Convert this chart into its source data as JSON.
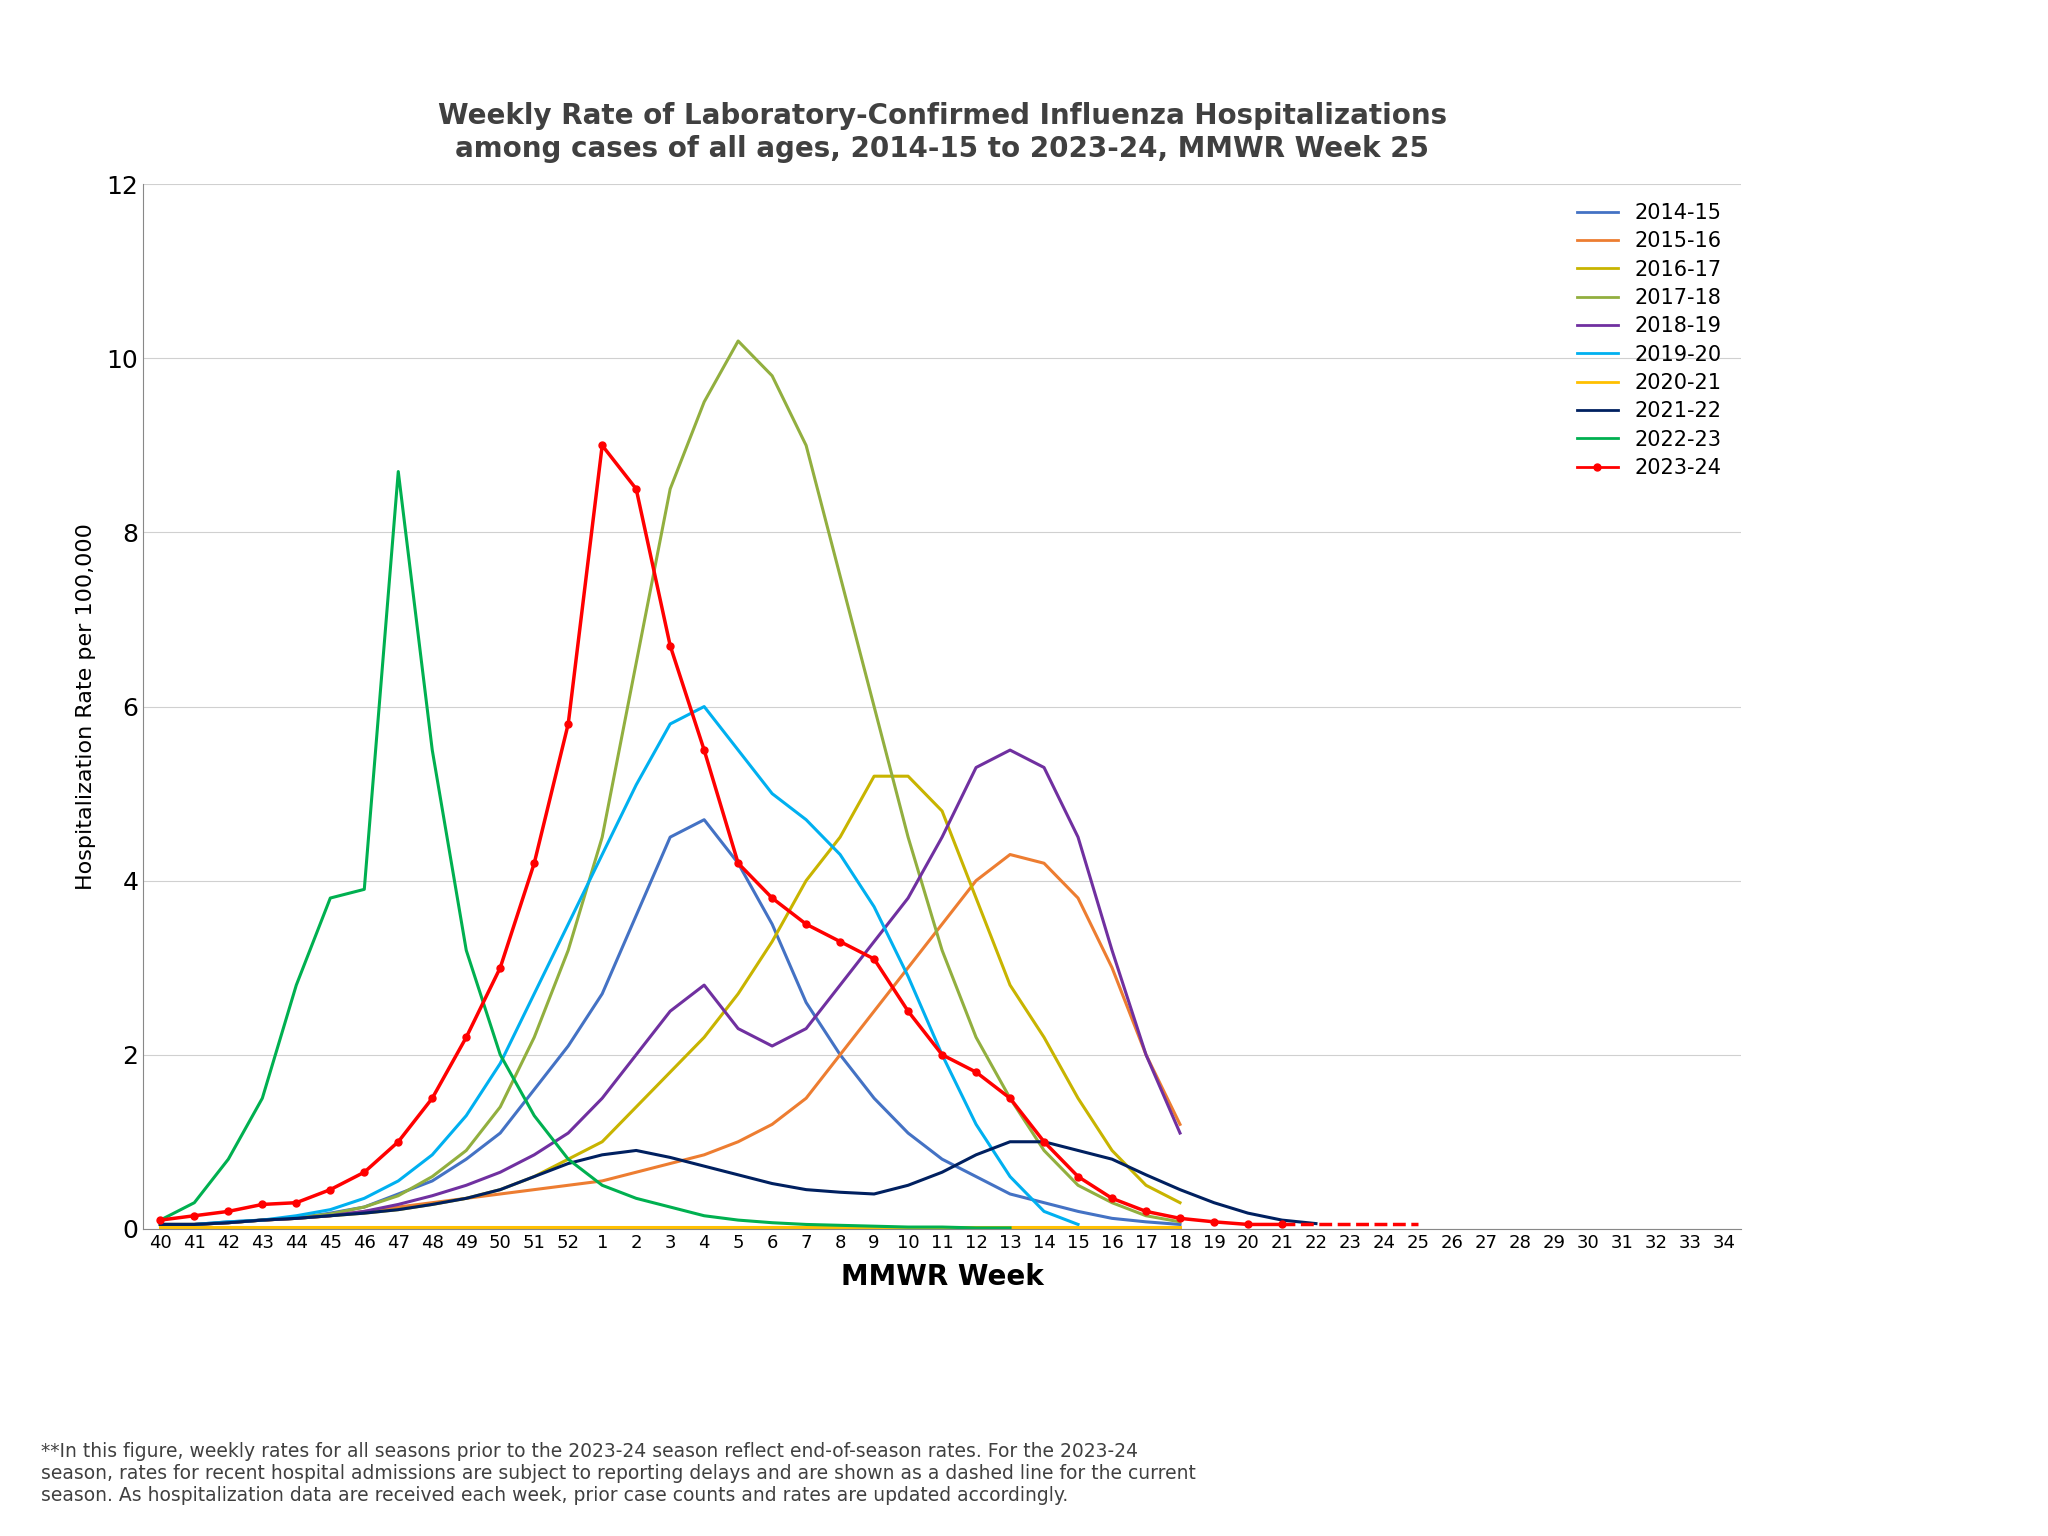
{
  "title_line1": "Weekly Rate of Laboratory-Confirmed Influenza Hospitalizations",
  "title_line2": "among cases of all ages, 2014-15 to 2023-24, MMWR Week 25",
  "xlabel": "MMWR Week",
  "ylabel": "Hospitalization Rate per 100,000",
  "ylim": [
    0,
    12
  ],
  "yticks": [
    0,
    2,
    4,
    6,
    8,
    10,
    12
  ],
  "x_labels": [
    "40",
    "41",
    "42",
    "43",
    "44",
    "45",
    "46",
    "47",
    "48",
    "49",
    "50",
    "51",
    "52",
    "1",
    "2",
    "3",
    "4",
    "5",
    "6",
    "7",
    "8",
    "9",
    "10",
    "11",
    "12",
    "13",
    "14",
    "15",
    "16",
    "17",
    "18",
    "19",
    "20",
    "21",
    "22",
    "23",
    "24",
    "25",
    "26",
    "27",
    "28",
    "29",
    "30",
    "31",
    "32",
    "33",
    "34"
  ],
  "footnote": "**In this figure, weekly rates for all seasons prior to the 2023-24 season reflect end-of-season rates. For the 2023-24\nseason, rates for recent hospital admissions are subject to reporting delays and are shown as a dashed line for the current\nseason. As hospitalization data are received each week, prior case counts and rates are updated accordingly.",
  "seasons": {
    "2014-15": {
      "color": "#4472C4",
      "xi": [
        0,
        1,
        2,
        3,
        4,
        5,
        6,
        7,
        8,
        9,
        10,
        11,
        12,
        13,
        14,
        15,
        16,
        17,
        18,
        19,
        20,
        21,
        22,
        23,
        24,
        25,
        26,
        27,
        28,
        29,
        30
      ],
      "y": [
        0.05,
        0.05,
        0.08,
        0.1,
        0.12,
        0.18,
        0.25,
        0.4,
        0.55,
        0.8,
        1.1,
        1.6,
        2.1,
        2.7,
        3.6,
        4.5,
        4.7,
        4.2,
        3.5,
        2.6,
        2.0,
        1.5,
        1.1,
        0.8,
        0.6,
        0.4,
        0.3,
        0.2,
        0.12,
        0.08,
        0.05
      ]
    },
    "2015-16": {
      "color": "#ED7D31",
      "xi": [
        0,
        1,
        2,
        3,
        4,
        5,
        6,
        7,
        8,
        9,
        10,
        11,
        12,
        13,
        14,
        15,
        16,
        17,
        18,
        19,
        20,
        21,
        22,
        23,
        24,
        25,
        26,
        27,
        28,
        29,
        30
      ],
      "y": [
        0.05,
        0.05,
        0.07,
        0.1,
        0.12,
        0.15,
        0.2,
        0.25,
        0.3,
        0.35,
        0.4,
        0.45,
        0.5,
        0.55,
        0.65,
        0.75,
        0.85,
        1.0,
        1.2,
        1.5,
        2.0,
        2.5,
        3.0,
        3.5,
        4.0,
        4.3,
        4.2,
        3.8,
        3.0,
        2.0,
        1.2
      ]
    },
    "2016-17": {
      "color": "#C8B400",
      "xi": [
        0,
        1,
        2,
        3,
        4,
        5,
        6,
        7,
        8,
        9,
        10,
        11,
        12,
        13,
        14,
        15,
        16,
        17,
        18,
        19,
        20,
        21,
        22,
        23,
        24,
        25,
        26,
        27,
        28,
        29,
        30
      ],
      "y": [
        0.05,
        0.05,
        0.07,
        0.1,
        0.12,
        0.15,
        0.18,
        0.22,
        0.28,
        0.35,
        0.45,
        0.6,
        0.8,
        1.0,
        1.4,
        1.8,
        2.2,
        2.7,
        3.3,
        4.0,
        4.5,
        5.2,
        5.2,
        4.8,
        3.8,
        2.8,
        2.2,
        1.5,
        0.9,
        0.5,
        0.3
      ]
    },
    "2017-18": {
      "color": "#92AF3F",
      "xi": [
        0,
        1,
        2,
        3,
        4,
        5,
        6,
        7,
        8,
        9,
        10,
        11,
        12,
        13,
        14,
        15,
        16,
        17,
        18,
        19,
        20,
        21,
        22,
        23,
        24,
        25,
        26,
        27,
        28,
        29,
        30
      ],
      "y": [
        0.05,
        0.05,
        0.07,
        0.1,
        0.13,
        0.17,
        0.25,
        0.38,
        0.6,
        0.9,
        1.4,
        2.2,
        3.2,
        4.5,
        6.5,
        8.5,
        9.5,
        10.2,
        9.8,
        9.0,
        7.5,
        6.0,
        4.5,
        3.2,
        2.2,
        1.5,
        0.9,
        0.5,
        0.3,
        0.15,
        0.08
      ]
    },
    "2018-19": {
      "color": "#7030A0",
      "xi": [
        0,
        1,
        2,
        3,
        4,
        5,
        6,
        7,
        8,
        9,
        10,
        11,
        12,
        13,
        14,
        15,
        16,
        17,
        18,
        19,
        20,
        21,
        22,
        23,
        24,
        25,
        26,
        27,
        28,
        29,
        30
      ],
      "y": [
        0.05,
        0.05,
        0.07,
        0.1,
        0.12,
        0.15,
        0.2,
        0.28,
        0.38,
        0.5,
        0.65,
        0.85,
        1.1,
        1.5,
        2.0,
        2.5,
        2.8,
        2.3,
        2.1,
        2.3,
        2.8,
        3.3,
        3.8,
        4.5,
        5.3,
        5.5,
        5.3,
        4.5,
        3.2,
        2.0,
        1.1
      ]
    },
    "2019-20": {
      "color": "#00B0F0",
      "xi": [
        0,
        1,
        2,
        3,
        4,
        5,
        6,
        7,
        8,
        9,
        10,
        11,
        12,
        13,
        14,
        15,
        16,
        17,
        18,
        19,
        20,
        21,
        22,
        23,
        24,
        25,
        26,
        27
      ],
      "y": [
        0.05,
        0.05,
        0.08,
        0.1,
        0.15,
        0.22,
        0.35,
        0.55,
        0.85,
        1.3,
        1.9,
        2.7,
        3.5,
        4.3,
        5.1,
        5.8,
        6.0,
        5.5,
        5.0,
        4.7,
        4.3,
        3.7,
        2.9,
        2.0,
        1.2,
        0.6,
        0.2,
        0.05
      ]
    },
    "2020-21": {
      "color": "#FFC000",
      "xi": [
        0,
        1,
        2,
        3,
        4,
        5,
        6,
        7,
        8,
        9,
        10,
        11,
        12,
        13,
        14,
        15,
        16,
        17,
        18,
        19,
        20,
        21,
        22,
        23,
        24,
        25,
        26,
        27,
        28,
        29,
        30
      ],
      "y": [
        0.02,
        0.02,
        0.02,
        0.02,
        0.02,
        0.02,
        0.02,
        0.02,
        0.02,
        0.02,
        0.02,
        0.02,
        0.02,
        0.02,
        0.02,
        0.02,
        0.02,
        0.02,
        0.02,
        0.02,
        0.02,
        0.02,
        0.02,
        0.02,
        0.02,
        0.02,
        0.02,
        0.02,
        0.02,
        0.02,
        0.02
      ]
    },
    "2021-22": {
      "color": "#002060",
      "xi": [
        0,
        1,
        2,
        3,
        4,
        5,
        6,
        7,
        8,
        9,
        10,
        11,
        12,
        13,
        14,
        15,
        16,
        17,
        18,
        19,
        20,
        21,
        22,
        23,
        24,
        25,
        26,
        27,
        28,
        29,
        30,
        31,
        32,
        33,
        34
      ],
      "y": [
        0.05,
        0.05,
        0.07,
        0.1,
        0.12,
        0.15,
        0.18,
        0.22,
        0.28,
        0.35,
        0.45,
        0.6,
        0.75,
        0.85,
        0.9,
        0.82,
        0.72,
        0.62,
        0.52,
        0.45,
        0.42,
        0.4,
        0.5,
        0.65,
        0.85,
        1.0,
        1.0,
        0.9,
        0.8,
        0.62,
        0.45,
        0.3,
        0.18,
        0.1,
        0.06
      ]
    },
    "2022-23": {
      "color": "#00B050",
      "xi": [
        0,
        1,
        2,
        3,
        4,
        5,
        6,
        7,
        8,
        9,
        10,
        11,
        12,
        13,
        14,
        15,
        16,
        17,
        18,
        19,
        20,
        21,
        22,
        23,
        24,
        25
      ],
      "y": [
        0.1,
        0.3,
        0.8,
        1.5,
        2.8,
        3.8,
        3.9,
        8.7,
        5.5,
        3.2,
        2.0,
        1.3,
        0.8,
        0.5,
        0.35,
        0.25,
        0.15,
        0.1,
        0.07,
        0.05,
        0.04,
        0.03,
        0.02,
        0.02,
        0.01,
        0.01
      ]
    }
  },
  "s2023_solid": {
    "color": "#FF0000",
    "xi": [
      0,
      1,
      2,
      3,
      4,
      5,
      6,
      7,
      8,
      9,
      10,
      11,
      12,
      13,
      14,
      15,
      16,
      17,
      18,
      19,
      20,
      21,
      22,
      23,
      24,
      25,
      26,
      27,
      28,
      29,
      30,
      31,
      32,
      33
    ],
    "y": [
      0.1,
      0.15,
      0.2,
      0.28,
      0.3,
      0.45,
      0.65,
      1.0,
      1.5,
      2.2,
      3.0,
      4.2,
      5.8,
      9.0,
      8.5,
      6.7,
      5.5,
      4.2,
      3.8,
      3.5,
      3.3,
      3.1,
      2.5,
      2.0,
      1.8,
      1.5,
      1.0,
      0.6,
      0.35,
      0.2,
      0.12,
      0.08,
      0.05,
      0.05
    ]
  },
  "s2023_dashed": {
    "color": "#FF0000",
    "xi": [
      33,
      34,
      35,
      36,
      37
    ],
    "y": [
      0.05,
      0.05,
      0.05,
      0.05,
      0.05
    ]
  },
  "legend_labels": [
    "2014-15",
    "2015-16",
    "2016-17",
    "2017-18",
    "2018-19",
    "2019-20",
    "2020-21",
    "2021-22",
    "2022-23",
    "2023-24"
  ],
  "legend_colors": [
    "#4472C4",
    "#ED7D31",
    "#C8B400",
    "#92AF3F",
    "#7030A0",
    "#00B0F0",
    "#FFC000",
    "#002060",
    "#00B050",
    "#FF0000"
  ]
}
